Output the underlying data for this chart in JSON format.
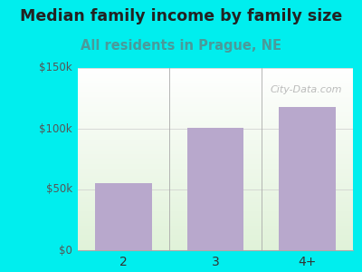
{
  "categories": [
    "2",
    "3",
    "4+"
  ],
  "values": [
    55000,
    101000,
    118000
  ],
  "bar_color": "#b8a8cc",
  "title": "Median family income by family size",
  "subtitle": "All residents in Prague, NE",
  "title_fontsize": 12.5,
  "subtitle_fontsize": 10.5,
  "subtitle_color": "#4a9a9a",
  "title_color": "#222222",
  "ylim": [
    0,
    150000
  ],
  "yticks": [
    0,
    50000,
    100000,
    150000
  ],
  "ytick_labels": [
    "$0",
    "$50k",
    "$100k",
    "$150k"
  ],
  "outer_bg": "#00EEEE",
  "watermark": "City-Data.com",
  "bar_width": 0.62
}
